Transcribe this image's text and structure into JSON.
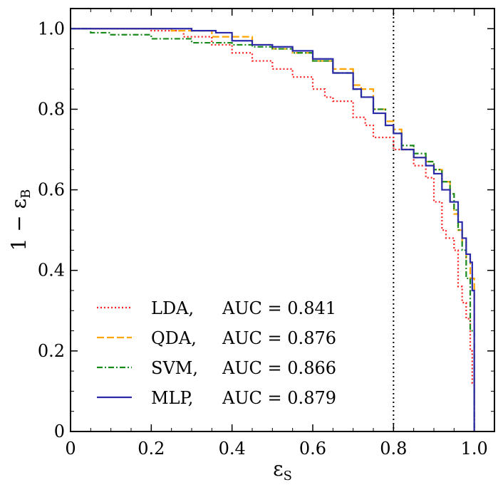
{
  "chart_data": {
    "type": "line",
    "title": "",
    "xlabel": "ε",
    "xlabel_sub": "S",
    "ylabel": "1 − ε",
    "ylabel_sub": "B",
    "xlim": [
      0,
      1.05
    ],
    "ylim": [
      0,
      1.05
    ],
    "xticks": [
      0,
      0.2,
      0.4,
      0.6,
      0.8,
      1.0
    ],
    "xtick_labels": [
      "0",
      "0.2",
      "0.4",
      "0.6",
      "0.8",
      "1.0"
    ],
    "yticks": [
      0,
      0.2,
      0.4,
      0.6,
      0.8,
      1.0
    ],
    "ytick_labels": [
      "0",
      "0.2",
      "0.4",
      "0.6",
      "0.8",
      "1.0"
    ],
    "grid": false,
    "legend_position": "lower-left",
    "reference_line": {
      "x": 0.8,
      "style": "dotted",
      "color": "#000000"
    },
    "series": [
      {
        "name": "LDA",
        "legend_label": "LDA,",
        "auc_label": "AUC = 0.841",
        "color": "#ff2020",
        "style": "dotted",
        "x": [
          0.0,
          0.1,
          0.2,
          0.28,
          0.35,
          0.4,
          0.45,
          0.5,
          0.55,
          0.6,
          0.63,
          0.65,
          0.7,
          0.73,
          0.75,
          0.8,
          0.85,
          0.88,
          0.9,
          0.92,
          0.93,
          0.95,
          0.96,
          0.97,
          0.98,
          0.99,
          0.995,
          1.0
        ],
        "values": [
          1.0,
          1.0,
          0.995,
          0.98,
          0.96,
          0.94,
          0.92,
          0.9,
          0.88,
          0.85,
          0.83,
          0.82,
          0.78,
          0.76,
          0.73,
          0.7,
          0.66,
          0.63,
          0.57,
          0.5,
          0.48,
          0.45,
          0.36,
          0.32,
          0.28,
          0.2,
          0.12,
          0.0
        ]
      },
      {
        "name": "QDA",
        "legend_label": "QDA,",
        "auc_label": "AUC = 0.876",
        "color": "#ffa500",
        "style": "dashed",
        "x": [
          0.0,
          0.15,
          0.25,
          0.35,
          0.45,
          0.5,
          0.55,
          0.6,
          0.65,
          0.7,
          0.72,
          0.75,
          0.78,
          0.8,
          0.82,
          0.85,
          0.88,
          0.9,
          0.92,
          0.94,
          0.95,
          0.96,
          0.97,
          0.98,
          0.99,
          1.0
        ],
        "values": [
          1.0,
          1.0,
          0.995,
          0.98,
          0.96,
          0.95,
          0.94,
          0.92,
          0.9,
          0.86,
          0.85,
          0.8,
          0.77,
          0.75,
          0.7,
          0.68,
          0.67,
          0.65,
          0.62,
          0.57,
          0.54,
          0.5,
          0.47,
          0.43,
          0.38,
          0.0
        ]
      },
      {
        "name": "SVM",
        "legend_label": "SVM,",
        "auc_label": "AUC = 0.866",
        "color": "#1a8a1a",
        "style": "dashdot",
        "x": [
          0.0,
          0.05,
          0.1,
          0.2,
          0.3,
          0.4,
          0.45,
          0.5,
          0.55,
          0.6,
          0.65,
          0.7,
          0.72,
          0.75,
          0.78,
          0.8,
          0.82,
          0.85,
          0.88,
          0.9,
          0.92,
          0.94,
          0.95,
          0.96,
          0.97,
          0.98,
          0.99,
          1.0
        ],
        "values": [
          1.0,
          0.99,
          0.985,
          0.975,
          0.965,
          0.96,
          0.955,
          0.95,
          0.94,
          0.92,
          0.89,
          0.85,
          0.83,
          0.8,
          0.76,
          0.74,
          0.71,
          0.69,
          0.67,
          0.65,
          0.62,
          0.59,
          0.55,
          0.5,
          0.45,
          0.38,
          0.25,
          0.0
        ]
      },
      {
        "name": "MLP",
        "legend_label": "MLP,",
        "auc_label": "AUC = 0.879",
        "color": "#2a2aa8",
        "style": "solid",
        "x": [
          0.0,
          0.1,
          0.2,
          0.3,
          0.36,
          0.4,
          0.45,
          0.5,
          0.55,
          0.6,
          0.65,
          0.7,
          0.72,
          0.75,
          0.78,
          0.8,
          0.82,
          0.85,
          0.88,
          0.9,
          0.92,
          0.94,
          0.96,
          0.97,
          0.98,
          0.99,
          0.995,
          1.0
        ],
        "values": [
          1.0,
          1.0,
          1.0,
          0.995,
          0.99,
          0.97,
          0.96,
          0.955,
          0.945,
          0.925,
          0.89,
          0.85,
          0.83,
          0.79,
          0.76,
          0.74,
          0.7,
          0.68,
          0.66,
          0.64,
          0.6,
          0.57,
          0.52,
          0.48,
          0.44,
          0.42,
          0.35,
          0.0
        ]
      }
    ]
  }
}
